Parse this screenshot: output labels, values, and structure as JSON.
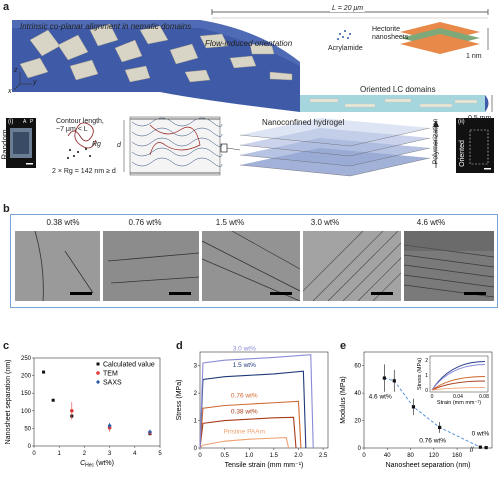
{
  "panel_a": {
    "label": "a",
    "alignment_text": "Intrinsic co-planar alignment in nematic domains",
    "flow_text": "Flow-induced orientation",
    "length_text": "L = 20 μm",
    "acrylamide": "Acrylamide",
    "hectorite_line1": "Hectorite",
    "hectorite_line2": "nanosheets",
    "thickness": "1 nm",
    "oriented_lc": "Oriented LC domains",
    "channel_height": "0.5 mm",
    "inset_i": "(i)",
    "inset_ii": "(ii)",
    "random": "Random",
    "oriented": "Oriented",
    "pol_a": "A",
    "pol_p": "P",
    "contour_line1": "Contour length,",
    "contour_line2": "~7 μm < L",
    "rg_label": "Rg",
    "rg_formula": "2 × Rg = 142 nm ≥ d",
    "d_label": "d",
    "nanoconfined": "Nanoconfined hydrogel",
    "polymerization": "Polymerization",
    "axis_x": "x",
    "axis_y": "y",
    "axis_z": "z"
  },
  "panel_b": {
    "label": "b",
    "images": [
      {
        "label": "0.38 wt%"
      },
      {
        "label": "0.76 wt%"
      },
      {
        "label": "1.5 wt%"
      },
      {
        "label": "3.0 wt%"
      },
      {
        "label": "4.6 wt%"
      }
    ]
  },
  "panel_c": {
    "label": "c",
    "chart_data": {
      "type": "scatter",
      "xlabel": "C_Hec (wt%)",
      "xlabel_main": "C",
      "xlabel_sub": "Hec",
      "xlabel_unit": "(wt%)",
      "ylabel": "Nanosheet separation (nm)",
      "xlim": [
        0,
        5
      ],
      "ylim": [
        0,
        250
      ],
      "xticks": [
        0,
        1,
        2,
        3,
        4,
        5
      ],
      "yticks": [
        0,
        50,
        100,
        150,
        200,
        250
      ],
      "legend_position": "top-right",
      "series": [
        {
          "name": "Calculated value",
          "color": "#111111",
          "marker": "square",
          "x": [
            0.38,
            0.76,
            1.5,
            3.0,
            4.6
          ],
          "y": [
            210,
            130,
            85,
            52,
            35
          ]
        },
        {
          "name": "TEM",
          "color": "#e03b3b",
          "marker": "circle",
          "x": [
            1.5,
            3.0,
            4.6
          ],
          "y": [
            100,
            52,
            38
          ],
          "err": [
            25,
            12,
            8
          ]
        },
        {
          "name": "SAXS",
          "color": "#2f5fa8",
          "marker": "diamond",
          "x": [
            3.0,
            4.6
          ],
          "y": [
            58,
            40
          ],
          "err": [
            8,
            6
          ]
        }
      ]
    }
  },
  "panel_d": {
    "label": "d",
    "chart_data": {
      "type": "line",
      "xlabel": "Tensile strain (mm mm⁻¹)",
      "ylabel": "Stress (MPa)",
      "xlim": [
        0,
        2.6
      ],
      "ylim": [
        0,
        3.5
      ],
      "xticks": [
        0,
        0.5,
        1.0,
        1.5,
        2.0,
        2.5
      ],
      "yticks": [
        0,
        1,
        2,
        3
      ],
      "series": [
        {
          "name": "Pristine PAAm",
          "color": "#f0a070",
          "x": [
            0,
            0.05,
            0.5,
            1.0,
            1.5,
            1.75,
            1.8
          ],
          "y": [
            0,
            0.1,
            0.25,
            0.32,
            0.36,
            0.38,
            0
          ]
        },
        {
          "name": "0.38 wt%",
          "color": "#a83a1a",
          "x": [
            0,
            0.06,
            0.5,
            1.0,
            1.5,
            1.9,
            1.95
          ],
          "y": [
            0,
            0.9,
            1.0,
            1.05,
            1.1,
            1.12,
            0
          ]
        },
        {
          "name": "0.76 wt%",
          "color": "#d06a30",
          "x": [
            0,
            0.06,
            0.5,
            1.0,
            1.5,
            2.0,
            2.05
          ],
          "y": [
            0,
            1.45,
            1.55,
            1.6,
            1.65,
            1.7,
            0
          ]
        },
        {
          "name": "1.5 wt%",
          "color": "#1f3a78",
          "x": [
            0,
            0.06,
            0.5,
            1.0,
            1.5,
            2.1,
            2.15
          ],
          "y": [
            0,
            2.5,
            2.6,
            2.65,
            2.7,
            2.8,
            0
          ]
        },
        {
          "name": "3.0 wt%",
          "color": "#8a8ad8",
          "x": [
            0,
            0.06,
            0.5,
            1.0,
            1.5,
            2.25,
            2.3
          ],
          "y": [
            0,
            3.1,
            3.2,
            3.25,
            3.3,
            3.4,
            0
          ]
        }
      ]
    }
  },
  "panel_e": {
    "label": "e",
    "chart_data": {
      "type": "scatter",
      "xlabel": "Nanosheet separation (nm)",
      "ylabel": "Modulus (MPa)",
      "xlim": [
        0,
        220
      ],
      "ylim": [
        0,
        70
      ],
      "xticks": [
        0,
        40,
        80,
        120,
        160
      ],
      "yticks": [
        0,
        20,
        40,
        60
      ],
      "break_label": "//",
      "x": [
        35,
        52,
        85,
        130,
        200,
        210
      ],
      "y": [
        51,
        49,
        30,
        15,
        0.6,
        0.3
      ],
      "err": [
        10,
        8,
        6,
        4,
        0.5,
        0.2
      ],
      "annotations": [
        {
          "text": "4.6 wt%"
        },
        {
          "text": "0.76 wt%"
        },
        {
          "text": "0 wt%"
        }
      ],
      "inset": {
        "xlabel": "Strain (mm mm⁻¹)",
        "ylabel": "Stress (MPa)",
        "xticks": [
          0,
          0.04,
          0.08
        ],
        "yticks": [
          0,
          1,
          2
        ]
      }
    }
  }
}
